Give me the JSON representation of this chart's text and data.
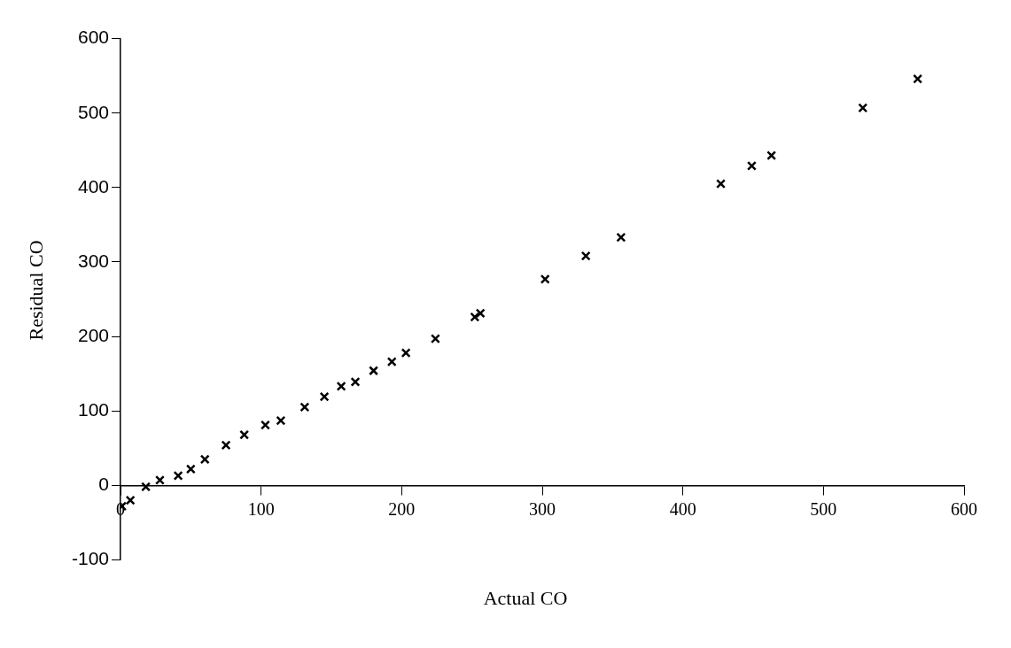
{
  "chart_data": {
    "type": "scatter",
    "xlabel": "Actual CO",
    "ylabel": "Residual CO",
    "x": [
      1,
      7,
      18,
      28,
      41,
      50,
      60,
      75,
      88,
      103,
      114,
      131,
      145,
      157,
      167,
      180,
      193,
      203,
      224,
      252,
      256,
      302,
      331,
      356,
      427,
      449,
      463,
      528,
      567
    ],
    "series": [
      {
        "color": "#000000",
        "values": [
          -28,
          -20,
          -2,
          7,
          13,
          22,
          35,
          54,
          68,
          81,
          87,
          105,
          119,
          133,
          139,
          154,
          166,
          178,
          197,
          226,
          231,
          277,
          308,
          333,
          405,
          429,
          443,
          507,
          546
        ]
      }
    ],
    "xlim": [
      0,
      600
    ],
    "xticks": [
      0,
      100,
      200,
      300,
      400,
      500,
      600
    ],
    "ylim": [
      -100,
      600
    ],
    "yticks": [
      -100,
      0,
      100,
      200,
      300,
      400,
      500,
      600
    ],
    "marker": "cross",
    "legend": false
  }
}
